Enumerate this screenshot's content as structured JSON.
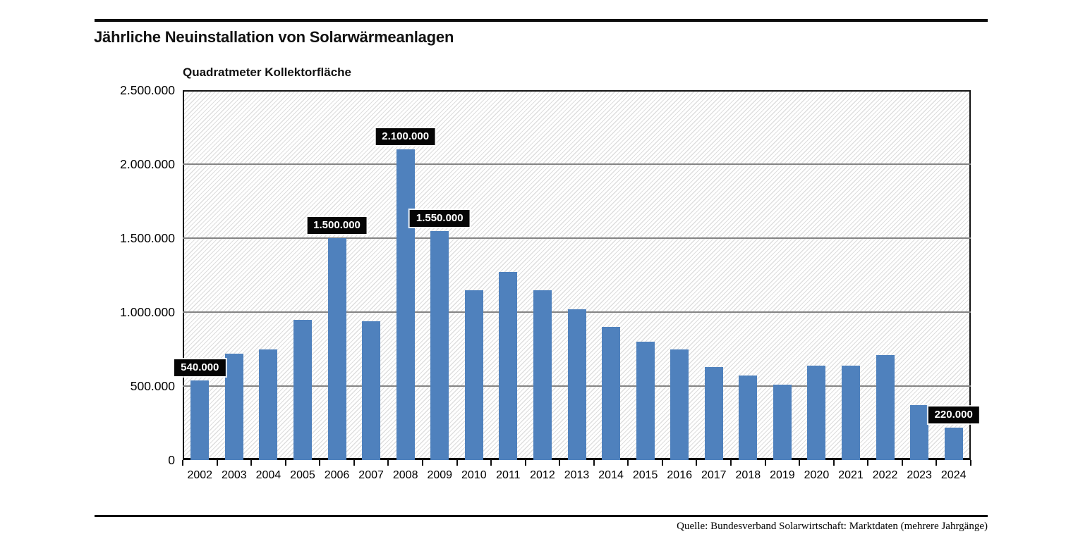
{
  "page": {
    "title": "Jährliche Neuinstallation von Solarwärmeanlagen",
    "source": "Quelle: Bundesverband Solarwirtschaft: Marktdaten (mehrere Jahrgänge)"
  },
  "chart_data": {
    "type": "bar",
    "title": "Jährliche Neuinstallation von Solarwärmeanlagen",
    "axis_title": "Quadratmeter Kollektorfläche",
    "xlabel": "",
    "ylabel": "Quadratmeter Kollektorfläche",
    "categories": [
      "2002",
      "2003",
      "2004",
      "2005",
      "2006",
      "2007",
      "2008",
      "2009",
      "2010",
      "2011",
      "2012",
      "2013",
      "2014",
      "2015",
      "2016",
      "2017",
      "2018",
      "2019",
      "2020",
      "2021",
      "2022",
      "2023",
      "2024"
    ],
    "values": [
      540000,
      720000,
      750000,
      950000,
      1500000,
      940000,
      2100000,
      1550000,
      1150000,
      1270000,
      1150000,
      1020000,
      900000,
      800000,
      750000,
      630000,
      570000,
      510000,
      640000,
      640000,
      710000,
      370000,
      220000
    ],
    "labeled_points": [
      {
        "category": "2002",
        "label": "540.000"
      },
      {
        "category": "2006",
        "label": "1.500.000"
      },
      {
        "category": "2008",
        "label": "2.100.000"
      },
      {
        "category": "2009",
        "label": "1.550.000"
      },
      {
        "category": "2024",
        "label": "220.000"
      }
    ],
    "ylim": [
      0,
      2500000
    ],
    "y_tick_values": [
      0,
      500000,
      1000000,
      1500000,
      2000000,
      2500000
    ],
    "y_tick_labels": [
      "0",
      "500.000",
      "1.000.000",
      "1.500.000",
      "2.000.000",
      "2.500.000"
    ],
    "grid": true,
    "legend": "none",
    "bar_color": "#4f81bd",
    "grid_color": "#848484",
    "label_box_color": "#050505",
    "label_text_color": "#ffffff",
    "background_hatch": "light-gray-diagonal"
  }
}
